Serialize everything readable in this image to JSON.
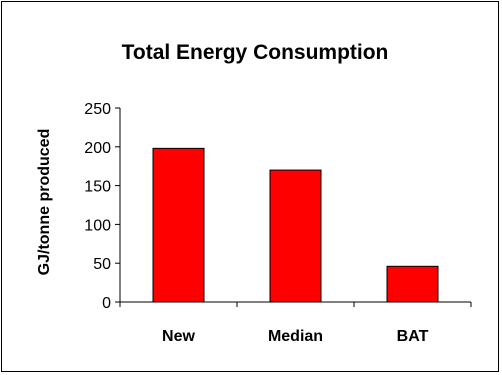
{
  "chart_data": {
    "type": "bar",
    "title": "Total Energy Consumption",
    "xlabel": "",
    "ylabel": "GJ/tonne produced",
    "categories": [
      "New",
      "Median",
      "BAT"
    ],
    "values": [
      198,
      170,
      46
    ],
    "ylim": [
      0,
      250
    ],
    "yticks": [
      0,
      50,
      100,
      150,
      200,
      250
    ],
    "grid": false,
    "legend": "none",
    "colors": {
      "bar_fill": "#ff0000",
      "bar_stroke": "#000000",
      "axis": "#000000"
    }
  }
}
